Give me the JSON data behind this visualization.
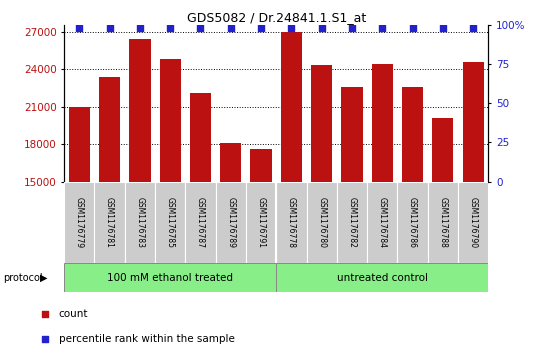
{
  "title": "GDS5082 / Dr.24841.1.S1_at",
  "samples": [
    "GSM1176779",
    "GSM1176781",
    "GSM1176783",
    "GSM1176785",
    "GSM1176787",
    "GSM1176789",
    "GSM1176791",
    "GSM1176778",
    "GSM1176780",
    "GSM1176782",
    "GSM1176784",
    "GSM1176786",
    "GSM1176788",
    "GSM1176790"
  ],
  "counts": [
    21000,
    23400,
    26400,
    24800,
    22100,
    18100,
    17600,
    27000,
    24300,
    22600,
    24400,
    22600,
    20100,
    24600
  ],
  "group1_label": "100 mM ethanol treated",
  "group2_label": "untreated control",
  "group1_count": 7,
  "group2_count": 7,
  "protocol_label": "protocol",
  "bar_color": "#bb1111",
  "dot_color": "#2222cc",
  "ylim_left": [
    15000,
    27500
  ],
  "ylim_right": [
    0,
    100
  ],
  "yticks_left": [
    15000,
    18000,
    21000,
    24000,
    27000
  ],
  "yticks_right": [
    0,
    25,
    50,
    75,
    100
  ],
  "green_fill": "#88ee88",
  "gray_fill": "#cccccc",
  "legend_count_label": "count",
  "legend_pct_label": "percentile rank within the sample"
}
